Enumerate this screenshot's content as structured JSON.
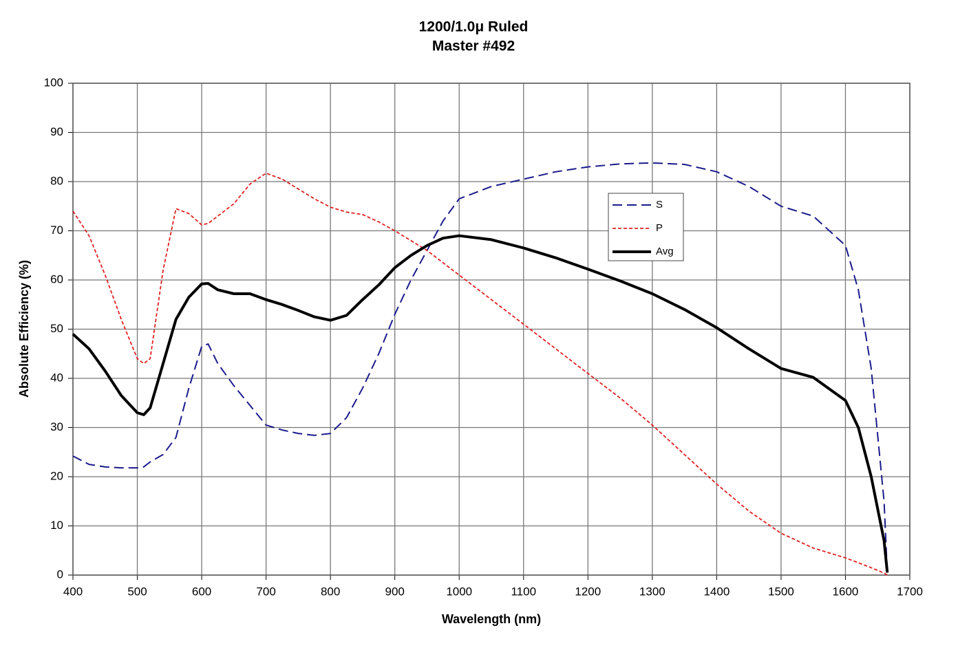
{
  "chart_data": {
    "type": "line",
    "title": [
      "1200/1.0μ Ruled",
      "Master #492"
    ],
    "x_label": "Wavelength (nm)",
    "y_label": "Absolute Efficiency (%)",
    "x": [
      400,
      425,
      450,
      475,
      500,
      510,
      520,
      540,
      560,
      580,
      600,
      610,
      625,
      650,
      675,
      700,
      725,
      750,
      775,
      800,
      825,
      850,
      875,
      900,
      925,
      950,
      975,
      1000,
      1050,
      1100,
      1150,
      1200,
      1250,
      1300,
      1350,
      1400,
      1450,
      1500,
      1550,
      1600,
      1620,
      1640,
      1660,
      1665
    ],
    "series": [
      {
        "name": "S",
        "color": "#1a1a8c",
        "style": "dashed",
        "values": [
          24.2,
          22.5,
          22,
          21.8,
          21.8,
          22,
          23,
          24.5,
          28,
          38,
          46.5,
          47,
          43,
          38.5,
          34.5,
          30.5,
          29.5,
          28.8,
          28.4,
          28.8,
          32,
          38,
          45,
          53,
          60,
          66,
          72,
          76.5,
          79,
          80.5,
          82,
          83,
          83.6,
          83.8,
          83.5,
          82,
          79,
          75,
          73,
          67,
          58,
          42,
          15,
          0.5
        ]
      },
      {
        "name": "P",
        "color": "#e02020",
        "style": "dotted",
        "values": [
          74,
          69,
          61,
          52,
          44,
          43,
          44,
          62,
          74.5,
          73.5,
          71.2,
          71.5,
          73,
          75.5,
          79.5,
          81.7,
          80.5,
          78.5,
          76.5,
          74.8,
          73.8,
          73.3,
          71.8,
          70,
          68,
          66,
          63.5,
          61,
          56,
          51,
          46,
          41,
          36,
          30.5,
          24.5,
          18.5,
          13,
          8.5,
          5.5,
          3.5,
          2.5,
          1.5,
          0.4,
          0
        ]
      },
      {
        "name": "Avg",
        "color": "#000000",
        "style": "solid",
        "values": [
          49,
          46,
          41.5,
          36.5,
          33,
          32.6,
          34,
          43,
          52,
          56.5,
          59.2,
          59.3,
          58,
          57.2,
          57.2,
          56,
          55,
          53.8,
          52.5,
          51.8,
          52.8,
          56,
          59,
          62.5,
          65,
          67,
          68.5,
          69,
          68.2,
          66.5,
          64.5,
          62.2,
          59.8,
          57.2,
          54,
          50.3,
          46,
          42,
          40.2,
          35.5,
          30,
          20,
          7,
          0.5
        ]
      }
    ],
    "xlim": [
      400,
      1700
    ],
    "xticks": [
      400,
      500,
      600,
      700,
      800,
      900,
      1000,
      1100,
      1200,
      1300,
      1400,
      1500,
      1600,
      1700
    ],
    "ylim": [
      0,
      100
    ],
    "yticks": [
      0,
      10,
      20,
      30,
      40,
      50,
      60,
      70,
      80,
      90,
      100
    ],
    "grid": true,
    "legend": "center-right"
  }
}
